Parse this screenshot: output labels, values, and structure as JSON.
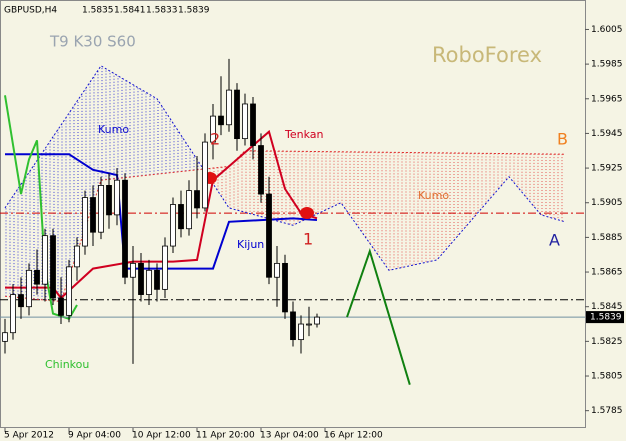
{
  "chart_data": {
    "type": "candlestick",
    "title": "GBPUSD,H4",
    "subtitle": "T9 K30 S60",
    "watermark": "RoboForex",
    "xlim": [
      -0.625,
      72.5
    ],
    "xticks": [
      {
        "value": 0,
        "label": "5 Apr 2012"
      },
      {
        "value": 8,
        "label": "9 Apr 04:00"
      },
      {
        "value": 16,
        "label": "10 Apr 12:00"
      },
      {
        "value": 24,
        "label": "11 Apr 20:00"
      },
      {
        "value": 32,
        "label": "13 Apr 04:00"
      },
      {
        "value": 40,
        "label": "16 Apr 12:00"
      }
    ],
    "ylim": [
      1.5775,
      1.6022
    ],
    "yticks": [
      1.6005,
      1.5985,
      1.5965,
      1.5945,
      1.5925,
      1.5905,
      1.5885,
      1.5865,
      1.5845,
      1.5825,
      1.5805,
      1.5785
    ],
    "candles": [
      [
        1.5825,
        1.5838,
        1.5818,
        1.583
      ],
      [
        1.583,
        1.5858,
        1.5826,
        1.5852
      ],
      [
        1.5852,
        1.5862,
        1.5838,
        1.5845
      ],
      [
        1.5845,
        1.587,
        1.584,
        1.5866
      ],
      [
        1.5866,
        1.5878,
        1.5852,
        1.5858
      ],
      [
        1.5858,
        1.589,
        1.5848,
        1.5886
      ],
      [
        1.5886,
        1.589,
        1.5846,
        1.585
      ],
      [
        1.585,
        1.5862,
        1.5835,
        1.584
      ],
      [
        1.584,
        1.5872,
        1.5836,
        1.5868
      ],
      [
        1.5868,
        1.5885,
        1.586,
        1.588
      ],
      [
        1.588,
        1.5912,
        1.5875,
        1.5908
      ],
      [
        1.5908,
        1.5915,
        1.588,
        1.5888
      ],
      [
        1.5888,
        1.592,
        1.5884,
        1.5915
      ],
      [
        1.5915,
        1.5922,
        1.589,
        1.5898
      ],
      [
        1.5898,
        1.5925,
        1.5892,
        1.5918
      ],
      [
        1.5918,
        1.5922,
        1.5858,
        1.5862
      ],
      [
        1.5862,
        1.588,
        1.5812,
        1.587
      ],
      [
        1.587,
        1.5876,
        1.5848,
        1.5852
      ],
      [
        1.5852,
        1.5872,
        1.5846,
        1.5866
      ],
      [
        1.5866,
        1.587,
        1.5848,
        1.5855
      ],
      [
        1.5855,
        1.5885,
        1.585,
        1.588
      ],
      [
        1.588,
        1.5908,
        1.5876,
        1.5904
      ],
      [
        1.5904,
        1.5912,
        1.5885,
        1.589
      ],
      [
        1.589,
        1.5918,
        1.5886,
        1.5912
      ],
      [
        1.5912,
        1.5932,
        1.5896,
        1.5902
      ],
      [
        1.5902,
        1.5945,
        1.59,
        1.594
      ],
      [
        1.594,
        1.5962,
        1.593,
        1.5955
      ],
      [
        1.5955,
        1.5978,
        1.5944,
        1.595
      ],
      [
        1.595,
        1.5988,
        1.5946,
        1.597
      ],
      [
        1.597,
        1.5974,
        1.5935,
        1.5942
      ],
      [
        1.5942,
        1.5968,
        1.5938,
        1.5962
      ],
      [
        1.5962,
        1.5966,
        1.593,
        1.5938
      ],
      [
        1.5938,
        1.5945,
        1.5905,
        1.591
      ],
      [
        1.591,
        1.592,
        1.5858,
        1.5862
      ],
      [
        1.5862,
        1.588,
        1.5845,
        1.587
      ],
      [
        1.587,
        1.5875,
        1.5838,
        1.5842
      ],
      [
        1.5842,
        1.5848,
        1.5822,
        1.5826
      ],
      [
        1.5826,
        1.584,
        1.5818,
        1.5835
      ],
      [
        1.5835,
        1.5845,
        1.5828,
        1.5835
      ],
      [
        1.5835,
        1.5841,
        1.5833,
        1.5839
      ]
    ],
    "lines": [
      {
        "name": "Kumo",
        "color": "#1010d0",
        "line_style": "dotted",
        "x": [
          0,
          12,
          19,
          28,
          36,
          42,
          48,
          54,
          63,
          67,
          70
        ],
        "values": [
          1.5902,
          1.5984,
          1.5965,
          1.5902,
          1.5892,
          1.5905,
          1.5866,
          1.5872,
          1.592,
          1.5898,
          1.5894
        ]
      },
      {
        "name": "Kumo",
        "color": "#e03030",
        "line_style": "dotted",
        "x": [
          0,
          7,
          12,
          28,
          30,
          70
        ],
        "values": [
          1.5851,
          1.5848,
          1.5918,
          1.5926,
          1.5935,
          1.5933
        ]
      },
      {
        "name": "Tenkan",
        "color": "#d00020",
        "line_style": "solid",
        "x": [
          0,
          6,
          7,
          11,
          16,
          21,
          24,
          26,
          29,
          33,
          35,
          37,
          39
        ],
        "values": [
          1.5856,
          1.5856,
          1.585,
          1.5867,
          1.5871,
          1.5871,
          1.5872,
          1.5918,
          1.593,
          1.5946,
          1.5913,
          1.5899,
          1.5896
        ]
      },
      {
        "name": "Kijun",
        "color": "#0000d0",
        "line_style": "solid",
        "x": [
          0,
          8,
          11,
          14,
          15,
          26,
          28,
          36,
          39
        ],
        "values": [
          1.5933,
          1.5933,
          1.5924,
          1.5921,
          1.5867,
          1.5867,
          1.5894,
          1.5896,
          1.5895
        ]
      },
      {
        "name": "Chinkou",
        "color": "#30c030",
        "line_style": "solid",
        "x": [
          0,
          2,
          3,
          4,
          5,
          6,
          8,
          9
        ],
        "values": [
          1.5967,
          1.591,
          1.593,
          1.5941,
          1.5867,
          1.5841,
          1.5838,
          1.5846
        ]
      }
    ],
    "levels": [
      {
        "value": 1.5899,
        "color": "#d00000"
      },
      {
        "value": 1.5849,
        "color": "#000000"
      }
    ],
    "forecast": {
      "color": "#108010",
      "x": [
        42.75,
        45.6,
        50.6
      ],
      "values": [
        1.5839,
        1.5877,
        1.58
      ]
    },
    "annotations": [
      {
        "text": "1",
        "color": "#d02020"
      },
      {
        "text": "2",
        "color": "#d02020"
      },
      {
        "text": "B",
        "color": "#f08020"
      },
      {
        "text": "A",
        "color": "#2020a0"
      }
    ]
  }
}
